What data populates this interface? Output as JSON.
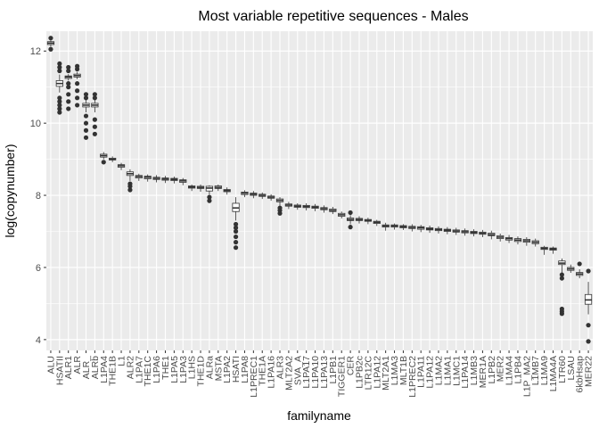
{
  "chart_data": {
    "type": "boxplot",
    "title": "Most variable repetitive sequences - Males",
    "xlabel": "familyname",
    "ylabel": "log(copynumber)",
    "ylim": [
      3.7,
      12.55
    ],
    "yticks": [
      4,
      6,
      8,
      10,
      12
    ],
    "grid": true,
    "legend": "none",
    "colors": {
      "panel": "#EBEBEB",
      "grid": "#FFFFFF",
      "box_fill": "#FFFFFF",
      "box_line": "#333333",
      "outlier": "#333333",
      "text": "#000000",
      "tick_text": "#4D4D4D"
    },
    "boxes": [
      {
        "name": "ALU",
        "q1": 12.18,
        "median": 12.22,
        "q3": 12.26,
        "whislo": 12.12,
        "whishi": 12.3,
        "outliers": [
          12.05,
          12.36
        ]
      },
      {
        "name": "HSATII",
        "q1": 11.02,
        "median": 11.1,
        "q3": 11.18,
        "whislo": 10.85,
        "whishi": 11.35,
        "outliers": [
          10.3,
          10.4,
          10.5,
          10.6,
          10.7,
          11.45,
          11.55,
          11.65
        ]
      },
      {
        "name": "ALR1",
        "q1": 11.24,
        "median": 11.28,
        "q3": 11.31,
        "whislo": 11.18,
        "whishi": 11.36,
        "outliers": [
          10.4,
          10.6,
          10.8,
          11.0,
          11.1,
          11.45,
          11.55
        ]
      },
      {
        "name": "ALR",
        "q1": 11.28,
        "median": 11.32,
        "q3": 11.36,
        "whislo": 11.22,
        "whishi": 11.42,
        "outliers": [
          10.5,
          10.7,
          10.9,
          11.1,
          11.5,
          11.58
        ]
      },
      {
        "name": "ALR_",
        "q1": 10.45,
        "median": 10.5,
        "q3": 10.55,
        "whislo": 10.3,
        "whishi": 10.65,
        "outliers": [
          9.6,
          9.8,
          10.0,
          10.2,
          10.7,
          10.8
        ]
      },
      {
        "name": "ALRb",
        "q1": 10.45,
        "median": 10.5,
        "q3": 10.55,
        "whislo": 10.3,
        "whishi": 10.65,
        "outliers": [
          9.7,
          9.9,
          10.1,
          10.7,
          10.8
        ]
      },
      {
        "name": "L1PA4",
        "q1": 9.06,
        "median": 9.1,
        "q3": 9.14,
        "whislo": 9.0,
        "whishi": 9.2,
        "outliers": [
          8.92
        ]
      },
      {
        "name": "THE1B",
        "q1": 8.98,
        "median": 9.0,
        "q3": 9.03,
        "whislo": 8.92,
        "whishi": 9.08,
        "outliers": []
      },
      {
        "name": "L1",
        "q1": 8.78,
        "median": 8.82,
        "q3": 8.85,
        "whislo": 8.7,
        "whishi": 8.9,
        "outliers": []
      },
      {
        "name": "ALR2",
        "q1": 8.55,
        "median": 8.6,
        "q3": 8.65,
        "whislo": 8.4,
        "whishi": 8.72,
        "outliers": [
          8.15,
          8.25,
          8.32
        ]
      },
      {
        "name": "L1PA7",
        "q1": 8.48,
        "median": 8.52,
        "q3": 8.55,
        "whislo": 8.4,
        "whishi": 8.6,
        "outliers": []
      },
      {
        "name": "THE1C",
        "q1": 8.46,
        "median": 8.5,
        "q3": 8.53,
        "whislo": 8.38,
        "whishi": 8.58,
        "outliers": []
      },
      {
        "name": "L1PA6",
        "q1": 8.44,
        "median": 8.47,
        "q3": 8.5,
        "whislo": 8.36,
        "whishi": 8.56,
        "outliers": []
      },
      {
        "name": "THE1",
        "q1": 8.42,
        "median": 8.45,
        "q3": 8.48,
        "whislo": 8.34,
        "whishi": 8.54,
        "outliers": []
      },
      {
        "name": "L1PA5",
        "q1": 8.41,
        "median": 8.44,
        "q3": 8.47,
        "whislo": 8.33,
        "whishi": 8.52,
        "outliers": []
      },
      {
        "name": "L1PA3",
        "q1": 8.36,
        "median": 8.4,
        "q3": 8.43,
        "whislo": 8.28,
        "whishi": 8.48,
        "outliers": []
      },
      {
        "name": "L1HS",
        "q1": 8.2,
        "median": 8.23,
        "q3": 8.26,
        "whislo": 8.12,
        "whishi": 8.3,
        "outliers": []
      },
      {
        "name": "THE1D",
        "q1": 8.19,
        "median": 8.22,
        "q3": 8.25,
        "whislo": 8.1,
        "whishi": 8.3,
        "outliers": []
      },
      {
        "name": "ALRa",
        "q1": 8.12,
        "median": 8.2,
        "q3": 8.25,
        "whislo": 8.02,
        "whishi": 8.28,
        "outliers": [
          7.85,
          7.95
        ]
      },
      {
        "name": "MSTA",
        "q1": 8.19,
        "median": 8.22,
        "q3": 8.26,
        "whislo": 8.12,
        "whishi": 8.3,
        "outliers": []
      },
      {
        "name": "L1PA2",
        "q1": 8.1,
        "median": 8.13,
        "q3": 8.16,
        "whislo": 8.02,
        "whishi": 8.22,
        "outliers": []
      },
      {
        "name": "HSATI",
        "q1": 7.55,
        "median": 7.65,
        "q3": 7.78,
        "whislo": 7.3,
        "whishi": 7.95,
        "outliers": [
          6.55,
          6.7,
          6.85,
          7.0,
          7.1,
          7.2
        ]
      },
      {
        "name": "L1PA8",
        "q1": 8.02,
        "median": 8.06,
        "q3": 8.09,
        "whislo": 7.95,
        "whishi": 8.14,
        "outliers": []
      },
      {
        "name": "L1PREC1",
        "q1": 8.0,
        "median": 8.03,
        "q3": 8.06,
        "whislo": 7.92,
        "whishi": 8.12,
        "outliers": []
      },
      {
        "name": "THE1A",
        "q1": 7.97,
        "median": 8.0,
        "q3": 8.03,
        "whislo": 7.9,
        "whishi": 8.08,
        "outliers": []
      },
      {
        "name": "L1PA16",
        "q1": 7.92,
        "median": 7.95,
        "q3": 7.98,
        "whislo": 7.85,
        "whishi": 8.03,
        "outliers": []
      },
      {
        "name": "ALR3",
        "q1": 7.82,
        "median": 7.86,
        "q3": 7.9,
        "whislo": 7.7,
        "whishi": 7.95,
        "outliers": [
          7.5,
          7.58,
          7.65
        ]
      },
      {
        "name": "MLT2A2",
        "q1": 7.7,
        "median": 7.73,
        "q3": 7.76,
        "whislo": 7.62,
        "whishi": 7.82,
        "outliers": []
      },
      {
        "name": "SVA_A",
        "q1": 7.67,
        "median": 7.7,
        "q3": 7.73,
        "whislo": 7.6,
        "whishi": 7.78,
        "outliers": []
      },
      {
        "name": "L1PA17",
        "q1": 7.66,
        "median": 7.69,
        "q3": 7.72,
        "whislo": 7.58,
        "whishi": 7.78,
        "outliers": []
      },
      {
        "name": "L1PA10",
        "q1": 7.64,
        "median": 7.67,
        "q3": 7.7,
        "whislo": 7.56,
        "whishi": 7.76,
        "outliers": []
      },
      {
        "name": "L1PA13",
        "q1": 7.6,
        "median": 7.63,
        "q3": 7.66,
        "whislo": 7.52,
        "whishi": 7.72,
        "outliers": []
      },
      {
        "name": "L1PB1",
        "q1": 7.55,
        "median": 7.58,
        "q3": 7.62,
        "whislo": 7.48,
        "whishi": 7.68,
        "outliers": []
      },
      {
        "name": "TIGGER1",
        "q1": 7.42,
        "median": 7.46,
        "q3": 7.5,
        "whislo": 7.36,
        "whishi": 7.55,
        "outliers": []
      },
      {
        "name": "CER",
        "q1": 7.3,
        "median": 7.33,
        "q3": 7.37,
        "whislo": 7.2,
        "whishi": 7.45,
        "outliers": [
          7.12,
          7.52
        ]
      },
      {
        "name": "L1PB2c",
        "q1": 7.3,
        "median": 7.33,
        "q3": 7.36,
        "whislo": 7.22,
        "whishi": 7.42,
        "outliers": []
      },
      {
        "name": "LTR12C",
        "q1": 7.28,
        "median": 7.3,
        "q3": 7.33,
        "whislo": 7.2,
        "whishi": 7.38,
        "outliers": []
      },
      {
        "name": "L1PA12",
        "q1": 7.22,
        "median": 7.25,
        "q3": 7.28,
        "whislo": 7.15,
        "whishi": 7.32,
        "outliers": []
      },
      {
        "name": "MLT2A1",
        "q1": 7.12,
        "median": 7.15,
        "q3": 7.18,
        "whislo": 7.02,
        "whishi": 7.24,
        "outliers": []
      },
      {
        "name": "L1MA3",
        "q1": 7.12,
        "median": 7.15,
        "q3": 7.18,
        "whislo": 7.05,
        "whishi": 7.22,
        "outliers": []
      },
      {
        "name": "MLT1B",
        "q1": 7.1,
        "median": 7.13,
        "q3": 7.16,
        "whislo": 7.04,
        "whishi": 7.2,
        "outliers": []
      },
      {
        "name": "L1PREC2",
        "q1": 7.08,
        "median": 7.11,
        "q3": 7.14,
        "whislo": 7.0,
        "whishi": 7.2,
        "outliers": []
      },
      {
        "name": "L1PA11",
        "q1": 7.06,
        "median": 7.1,
        "q3": 7.13,
        "whislo": 6.98,
        "whishi": 7.18,
        "outliers": []
      },
      {
        "name": "L1PA12",
        "q1": 7.04,
        "median": 7.07,
        "q3": 7.1,
        "whislo": 6.96,
        "whishi": 7.16,
        "outliers": []
      },
      {
        "name": "L1MA2",
        "q1": 7.02,
        "median": 7.05,
        "q3": 7.08,
        "whislo": 6.94,
        "whishi": 7.14,
        "outliers": []
      },
      {
        "name": "L1MA1",
        "q1": 7.0,
        "median": 7.03,
        "q3": 7.06,
        "whislo": 6.92,
        "whishi": 7.12,
        "outliers": []
      },
      {
        "name": "L1MC1",
        "q1": 6.98,
        "median": 7.01,
        "q3": 7.04,
        "whislo": 6.9,
        "whishi": 7.1,
        "outliers": []
      },
      {
        "name": "L1PA14",
        "q1": 6.96,
        "median": 6.99,
        "q3": 7.02,
        "whislo": 6.88,
        "whishi": 7.08,
        "outliers": []
      },
      {
        "name": "L1MB3",
        "q1": 6.94,
        "median": 6.97,
        "q3": 7.0,
        "whislo": 6.86,
        "whishi": 7.06,
        "outliers": []
      },
      {
        "name": "MER1A",
        "q1": 6.92,
        "median": 6.95,
        "q3": 6.98,
        "whislo": 6.84,
        "whishi": 7.04,
        "outliers": []
      },
      {
        "name": "L1PB2",
        "q1": 6.88,
        "median": 6.91,
        "q3": 6.95,
        "whislo": 6.78,
        "whishi": 7.02,
        "outliers": []
      },
      {
        "name": "MER2",
        "q1": 6.8,
        "median": 6.84,
        "q3": 6.88,
        "whislo": 6.72,
        "whishi": 6.94,
        "outliers": []
      },
      {
        "name": "L1MA4",
        "q1": 6.76,
        "median": 6.8,
        "q3": 6.83,
        "whislo": 6.68,
        "whishi": 6.9,
        "outliers": []
      },
      {
        "name": "L1PB4",
        "q1": 6.72,
        "median": 6.76,
        "q3": 6.8,
        "whislo": 6.64,
        "whishi": 6.86,
        "outliers": []
      },
      {
        "name": "L1P_MA2",
        "q1": 6.7,
        "median": 6.74,
        "q3": 6.78,
        "whislo": 6.6,
        "whishi": 6.84,
        "outliers": []
      },
      {
        "name": "L1MB7",
        "q1": 6.66,
        "median": 6.7,
        "q3": 6.74,
        "whislo": 6.58,
        "whishi": 6.8,
        "outliers": []
      },
      {
        "name": "L1MA9",
        "q1": 6.5,
        "median": 6.53,
        "q3": 6.56,
        "whislo": 6.35,
        "whishi": 6.6,
        "outliers": []
      },
      {
        "name": "L1MA4A",
        "q1": 6.48,
        "median": 6.51,
        "q3": 6.54,
        "whislo": 6.38,
        "whishi": 6.58,
        "outliers": []
      },
      {
        "name": "LTR60",
        "q1": 6.08,
        "median": 6.12,
        "q3": 6.18,
        "whislo": 5.85,
        "whishi": 6.25,
        "outliers": [
          4.72,
          4.78,
          4.85,
          5.7,
          5.8
        ]
      },
      {
        "name": "LSAU",
        "q1": 5.92,
        "median": 5.96,
        "q3": 6.0,
        "whislo": 5.85,
        "whishi": 6.08,
        "outliers": []
      },
      {
        "name": "6kbHsap",
        "q1": 5.78,
        "median": 5.82,
        "q3": 5.86,
        "whislo": 5.7,
        "whishi": 5.95,
        "outliers": [
          6.1
        ]
      },
      {
        "name": "MER22",
        "q1": 4.98,
        "median": 5.1,
        "q3": 5.25,
        "whislo": 4.7,
        "whishi": 5.6,
        "outliers": [
          3.95,
          4.4,
          5.9
        ]
      }
    ],
    "tick_labels": [
      "ALU",
      "HSATII",
      "ALR1",
      "ALR",
      "ALR_",
      "ALRb",
      "L1PA4",
      "THE1B",
      "L1",
      "ALR2",
      "L1PA7",
      "THE1C",
      "L1PA6",
      "THE1",
      "L1PA5",
      "L1PA3",
      "L1HS",
      "THE1D",
      "ALRa",
      "MSTA",
      "L1PA2",
      "HSATI",
      "L1PA8",
      "L1PREC1",
      "THE1A",
      "L1PA16",
      "ALR3",
      "MLT2A2",
      "SVA_A",
      "L1PA17",
      "L1PA10",
      "L1PA13",
      "L1PB1",
      "TIGGER1",
      "CER",
      "L1PB2c",
      "LTR12C",
      "L1PA12",
      "MLT2A1",
      "L1MA3",
      "MLT1B",
      "L1PREC2",
      "L1PA11",
      "L1PA12",
      "L1MA2",
      "L1MA1",
      "L1MC1",
      "L1PA14",
      "L1MB3",
      "MER1A",
      "L1PB2",
      "MER2",
      "L1MA4",
      "L1PB4",
      "L1P_MA2",
      "L1MB7",
      "L1MA9",
      "L1MA4A",
      "LTR60",
      "LSAU",
      "6kbHsap",
      "MER22"
    ]
  }
}
